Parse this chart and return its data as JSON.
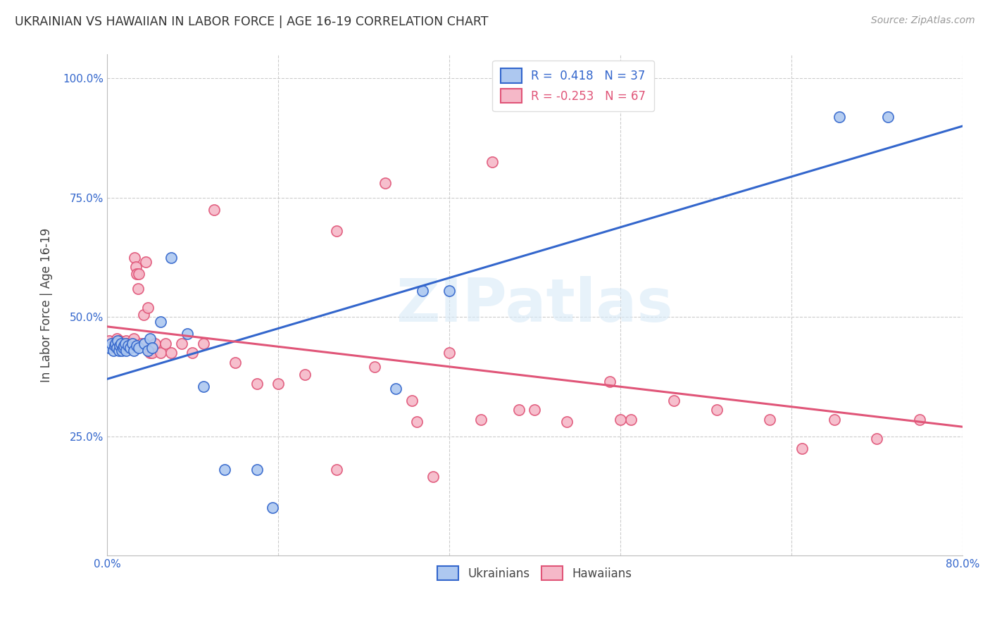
{
  "title": "UKRAINIAN VS HAWAIIAN IN LABOR FORCE | AGE 16-19 CORRELATION CHART",
  "source": "Source: ZipAtlas.com",
  "ylabel": "In Labor Force | Age 16-19",
  "xlim": [
    0.0,
    0.8
  ],
  "ylim": [
    0.0,
    1.05
  ],
  "yticks": [
    0.0,
    0.25,
    0.5,
    0.75,
    1.0
  ],
  "ytick_labels": [
    "",
    "25.0%",
    "50.0%",
    "75.0%",
    "100.0%"
  ],
  "xticks": [
    0.0,
    0.16,
    0.32,
    0.48,
    0.64,
    0.8
  ],
  "xtick_labels": [
    "0.0%",
    "",
    "",
    "",
    "",
    "80.0%"
  ],
  "legend_r_ukrainian": "R =  0.418",
  "legend_n_ukrainian": "N = 37",
  "legend_r_hawaiian": "R = -0.253",
  "legend_n_hawaiian": "N = 67",
  "ukrainian_color": "#adc8f0",
  "hawaiian_color": "#f5b8c8",
  "line_ukrainian_color": "#3366cc",
  "line_hawaiian_color": "#e05578",
  "watermark_text": "ZIPatlas",
  "background_color": "#ffffff",
  "grid_color": "#cccccc",
  "ukrainian_x": [
    0.002,
    0.004,
    0.006,
    0.007,
    0.008,
    0.009,
    0.01,
    0.011,
    0.012,
    0.013,
    0.014,
    0.015,
    0.016,
    0.017,
    0.018,
    0.02,
    0.022,
    0.024,
    0.025,
    0.028,
    0.03,
    0.035,
    0.038,
    0.04,
    0.042,
    0.05,
    0.06,
    0.075,
    0.09,
    0.11,
    0.14,
    0.155,
    0.27,
    0.295,
    0.32,
    0.685,
    0.73
  ],
  "ukrainian_y": [
    0.435,
    0.445,
    0.43,
    0.44,
    0.445,
    0.435,
    0.45,
    0.43,
    0.44,
    0.445,
    0.43,
    0.435,
    0.44,
    0.445,
    0.43,
    0.44,
    0.435,
    0.445,
    0.43,
    0.44,
    0.435,
    0.445,
    0.43,
    0.455,
    0.435,
    0.49,
    0.625,
    0.465,
    0.355,
    0.18,
    0.18,
    0.1,
    0.35,
    0.555,
    0.555,
    0.92,
    0.92
  ],
  "hawaiian_x": [
    0.002,
    0.005,
    0.007,
    0.008,
    0.009,
    0.01,
    0.011,
    0.012,
    0.013,
    0.014,
    0.015,
    0.016,
    0.017,
    0.018,
    0.019,
    0.02,
    0.021,
    0.022,
    0.023,
    0.024,
    0.025,
    0.026,
    0.027,
    0.028,
    0.029,
    0.03,
    0.032,
    0.034,
    0.036,
    0.038,
    0.04,
    0.042,
    0.045,
    0.05,
    0.055,
    0.06,
    0.07,
    0.08,
    0.09,
    0.1,
    0.12,
    0.14,
    0.16,
    0.185,
    0.215,
    0.25,
    0.29,
    0.32,
    0.35,
    0.385,
    0.43,
    0.47,
    0.49,
    0.53,
    0.57,
    0.62,
    0.65,
    0.68,
    0.72,
    0.76,
    0.26,
    0.36,
    0.285,
    0.4,
    0.48,
    0.305,
    0.215
  ],
  "hawaiian_y": [
    0.45,
    0.44,
    0.445,
    0.435,
    0.455,
    0.445,
    0.44,
    0.45,
    0.435,
    0.44,
    0.445,
    0.44,
    0.435,
    0.45,
    0.44,
    0.445,
    0.435,
    0.44,
    0.445,
    0.44,
    0.455,
    0.625,
    0.605,
    0.59,
    0.56,
    0.59,
    0.445,
    0.505,
    0.615,
    0.52,
    0.425,
    0.425,
    0.445,
    0.425,
    0.445,
    0.425,
    0.445,
    0.425,
    0.445,
    0.725,
    0.405,
    0.36,
    0.36,
    0.38,
    0.68,
    0.395,
    0.28,
    0.425,
    0.285,
    0.305,
    0.28,
    0.365,
    0.285,
    0.325,
    0.305,
    0.285,
    0.225,
    0.285,
    0.245,
    0.285,
    0.78,
    0.825,
    0.325,
    0.305,
    0.285,
    0.165,
    0.18
  ],
  "u_trend_x0": 0.0,
  "u_trend_y0": 0.37,
  "u_trend_x1": 0.8,
  "u_trend_y1": 0.9,
  "h_trend_x0": 0.0,
  "h_trend_y0": 0.48,
  "h_trend_x1": 0.8,
  "h_trend_y1": 0.27
}
